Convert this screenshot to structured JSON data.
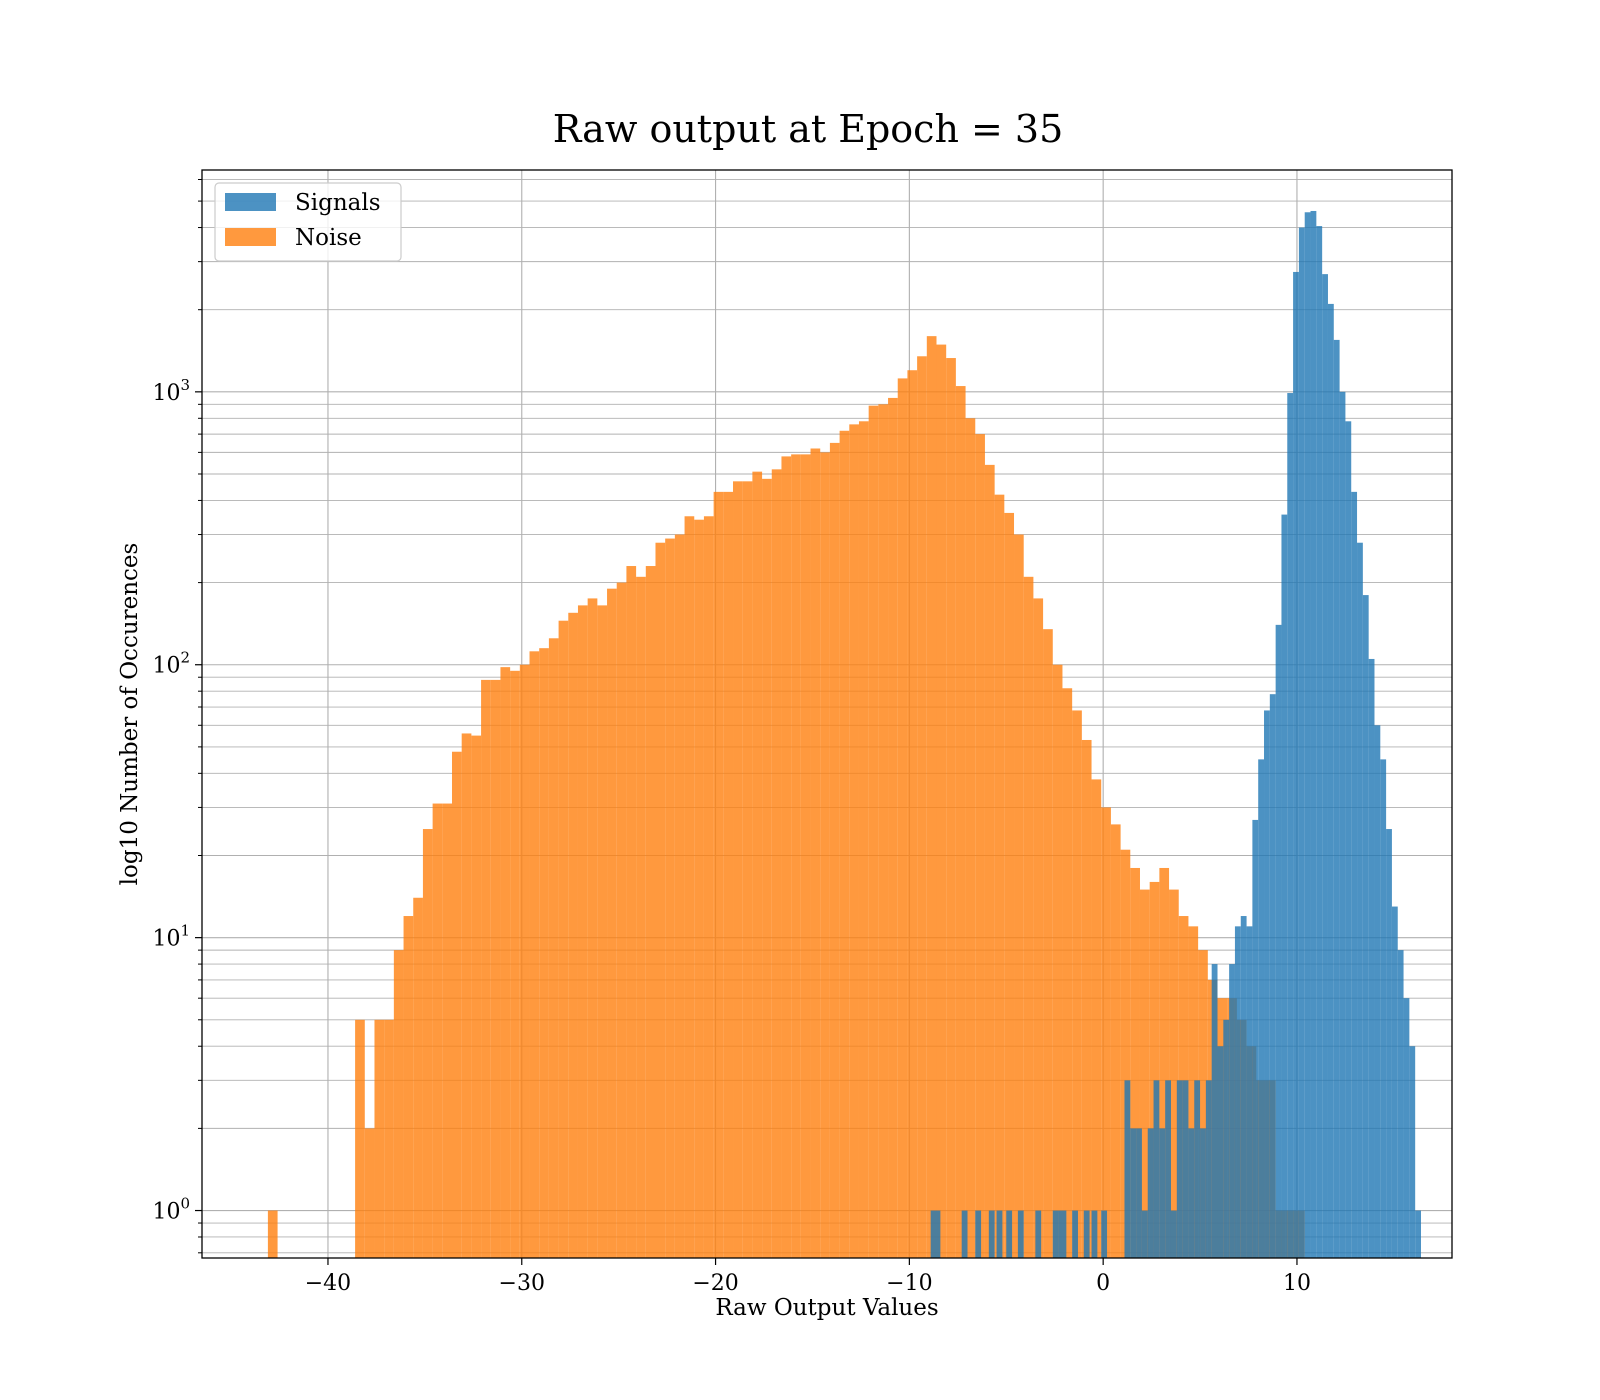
{
  "chart_data": {
    "type": "histogram",
    "title": "Raw output at Epoch = 35",
    "xlabel": "Raw Output Values",
    "ylabel": "log10 Number of Occurences",
    "yscale": "log",
    "xlim": [
      -46.5,
      18
    ],
    "ylim": [
      0.67,
      6500
    ],
    "grid": true,
    "legend_position": "upper left",
    "x_ticks": [
      {
        "value": -40,
        "label": "−40"
      },
      {
        "value": -30,
        "label": "−30"
      },
      {
        "value": -20,
        "label": "−20"
      },
      {
        "value": -10,
        "label": "−10"
      },
      {
        "value": 0,
        "label": "0"
      },
      {
        "value": 10,
        "label": "10"
      }
    ],
    "y_ticks": [
      {
        "value": 1,
        "base": "10",
        "exp": "0"
      },
      {
        "value": 10,
        "base": "10",
        "exp": "1"
      },
      {
        "value": 100,
        "base": "10",
        "exp": "2"
      },
      {
        "value": 1000,
        "base": "10",
        "exp": "3"
      }
    ],
    "series": [
      {
        "name": "Signals",
        "color": "#1f77b4",
        "opacity": 0.8,
        "bins": [
          [
            -8.9,
            -8.4,
            1
          ],
          [
            -7.3,
            -7.0,
            1
          ],
          [
            -6.6,
            -6.3,
            1
          ],
          [
            -5.9,
            -5.6,
            1
          ],
          [
            -5.5,
            -5.2,
            1
          ],
          [
            -5.0,
            -4.7,
            1
          ],
          [
            -4.4,
            -4.1,
            1
          ],
          [
            -3.5,
            -3.2,
            1
          ],
          [
            -2.6,
            -2.3,
            1
          ],
          [
            -2.3,
            -1.9,
            1
          ],
          [
            -1.6,
            -1.3,
            1
          ],
          [
            -1.0,
            -0.7,
            1
          ],
          [
            -0.6,
            -0.3,
            1
          ],
          [
            -0.1,
            0.2,
            1
          ],
          [
            1.1,
            1.4,
            3
          ],
          [
            1.4,
            1.7,
            2
          ],
          [
            1.7,
            2.0,
            2
          ],
          [
            2.0,
            2.3,
            1
          ],
          [
            2.3,
            2.6,
            2
          ],
          [
            2.6,
            2.9,
            3
          ],
          [
            2.9,
            3.2,
            2
          ],
          [
            3.2,
            3.5,
            3
          ],
          [
            3.5,
            3.8,
            1
          ],
          [
            3.8,
            4.1,
            3
          ],
          [
            4.1,
            4.4,
            3
          ],
          [
            4.4,
            4.7,
            2
          ],
          [
            4.7,
            5.0,
            3
          ],
          [
            5.0,
            5.3,
            2
          ],
          [
            5.3,
            5.6,
            3
          ],
          [
            5.6,
            5.9,
            8
          ],
          [
            5.9,
            6.2,
            4
          ],
          [
            6.2,
            6.5,
            5
          ],
          [
            6.5,
            6.8,
            8
          ],
          [
            6.8,
            7.1,
            11
          ],
          [
            7.1,
            7.4,
            12
          ],
          [
            7.4,
            7.7,
            11
          ],
          [
            7.7,
            8.0,
            27
          ],
          [
            8.0,
            8.3,
            45
          ],
          [
            8.3,
            8.6,
            68
          ],
          [
            8.6,
            8.9,
            78
          ],
          [
            8.9,
            9.2,
            140
          ],
          [
            9.2,
            9.5,
            355
          ],
          [
            9.5,
            9.8,
            990
          ],
          [
            9.8,
            10.1,
            2750
          ],
          [
            10.1,
            10.4,
            4000
          ],
          [
            10.4,
            10.7,
            4550
          ],
          [
            10.7,
            11.0,
            4600
          ],
          [
            11.0,
            11.3,
            4050
          ],
          [
            11.3,
            11.6,
            2700
          ],
          [
            11.6,
            11.9,
            2100
          ],
          [
            11.9,
            12.2,
            1550
          ],
          [
            12.2,
            12.5,
            1000
          ],
          [
            12.5,
            12.8,
            780
          ],
          [
            12.8,
            13.1,
            430
          ],
          [
            13.1,
            13.4,
            280
          ],
          [
            13.4,
            13.7,
            180
          ],
          [
            13.7,
            14.0,
            105
          ],
          [
            14.0,
            14.3,
            60
          ],
          [
            14.3,
            14.6,
            45
          ],
          [
            14.6,
            14.9,
            25
          ],
          [
            14.9,
            15.2,
            13
          ],
          [
            15.2,
            15.5,
            9
          ],
          [
            15.5,
            15.8,
            6
          ],
          [
            15.8,
            16.1,
            4
          ],
          [
            16.1,
            16.4,
            1
          ]
        ]
      },
      {
        "name": "Noise",
        "color": "#ff7f0e",
        "opacity": 0.8,
        "bins": [
          [
            -43.1,
            -42.6,
            1
          ],
          [
            -38.6,
            -38.1,
            5
          ],
          [
            -38.1,
            -37.6,
            2
          ],
          [
            -37.6,
            -37.1,
            5
          ],
          [
            -37.1,
            -36.6,
            5
          ],
          [
            -36.6,
            -36.1,
            9
          ],
          [
            -36.1,
            -35.6,
            12
          ],
          [
            -35.6,
            -35.1,
            14
          ],
          [
            -35.1,
            -34.6,
            25
          ],
          [
            -34.6,
            -34.1,
            31
          ],
          [
            -34.1,
            -33.6,
            31
          ],
          [
            -33.6,
            -33.1,
            48
          ],
          [
            -33.1,
            -32.6,
            56
          ],
          [
            -32.6,
            -32.1,
            55
          ],
          [
            -32.1,
            -31.6,
            88
          ],
          [
            -31.6,
            -31.1,
            88
          ],
          [
            -31.1,
            -30.6,
            98
          ],
          [
            -30.6,
            -30.1,
            95
          ],
          [
            -30.1,
            -29.6,
            100
          ],
          [
            -29.6,
            -29.1,
            112
          ],
          [
            -29.1,
            -28.6,
            115
          ],
          [
            -28.6,
            -28.1,
            125
          ],
          [
            -28.1,
            -27.6,
            145
          ],
          [
            -27.6,
            -27.1,
            155
          ],
          [
            -27.1,
            -26.6,
            165
          ],
          [
            -26.6,
            -26.1,
            175
          ],
          [
            -26.1,
            -25.6,
            165
          ],
          [
            -25.6,
            -25.1,
            190
          ],
          [
            -25.1,
            -24.6,
            200
          ],
          [
            -24.6,
            -24.1,
            230
          ],
          [
            -24.1,
            -23.6,
            210
          ],
          [
            -23.6,
            -23.1,
            230
          ],
          [
            -23.1,
            -22.6,
            280
          ],
          [
            -22.6,
            -22.1,
            290
          ],
          [
            -22.1,
            -21.6,
            300
          ],
          [
            -21.6,
            -21.1,
            350
          ],
          [
            -21.1,
            -20.6,
            340
          ],
          [
            -20.6,
            -20.1,
            350
          ],
          [
            -20.1,
            -19.6,
            430
          ],
          [
            -19.6,
            -19.1,
            430
          ],
          [
            -19.1,
            -18.6,
            470
          ],
          [
            -18.6,
            -18.1,
            470
          ],
          [
            -18.1,
            -17.6,
            510
          ],
          [
            -17.6,
            -17.1,
            480
          ],
          [
            -17.1,
            -16.6,
            520
          ],
          [
            -16.6,
            -16.1,
            580
          ],
          [
            -16.1,
            -15.6,
            590
          ],
          [
            -15.6,
            -15.1,
            590
          ],
          [
            -15.1,
            -14.6,
            620
          ],
          [
            -14.6,
            -14.1,
            600
          ],
          [
            -14.1,
            -13.6,
            650
          ],
          [
            -13.6,
            -13.1,
            720
          ],
          [
            -13.1,
            -12.6,
            760
          ],
          [
            -12.6,
            -12.1,
            780
          ],
          [
            -12.1,
            -11.6,
            890
          ],
          [
            -11.6,
            -11.1,
            900
          ],
          [
            -11.1,
            -10.6,
            950
          ],
          [
            -10.6,
            -10.1,
            1120
          ],
          [
            -10.1,
            -9.6,
            1200
          ],
          [
            -9.6,
            -9.1,
            1350
          ],
          [
            -9.1,
            -8.6,
            1600
          ],
          [
            -8.6,
            -8.1,
            1490
          ],
          [
            -8.1,
            -7.6,
            1330
          ],
          [
            -7.6,
            -7.1,
            1050
          ],
          [
            -7.1,
            -6.6,
            800
          ],
          [
            -6.6,
            -6.1,
            700
          ],
          [
            -6.1,
            -5.6,
            540
          ],
          [
            -5.6,
            -5.1,
            420
          ],
          [
            -5.1,
            -4.6,
            360
          ],
          [
            -4.6,
            -4.1,
            300
          ],
          [
            -4.1,
            -3.6,
            210
          ],
          [
            -3.6,
            -3.1,
            175
          ],
          [
            -3.1,
            -2.6,
            135
          ],
          [
            -2.6,
            -2.1,
            100
          ],
          [
            -2.1,
            -1.6,
            82
          ],
          [
            -1.6,
            -1.1,
            68
          ],
          [
            -1.1,
            -0.6,
            53
          ],
          [
            -0.6,
            -0.1,
            38
          ],
          [
            -0.1,
            0.4,
            30
          ],
          [
            0.4,
            0.9,
            26
          ],
          [
            0.9,
            1.4,
            21
          ],
          [
            1.4,
            1.9,
            18
          ],
          [
            1.9,
            2.4,
            15
          ],
          [
            2.4,
            2.9,
            16
          ],
          [
            2.9,
            3.4,
            18
          ],
          [
            3.4,
            3.9,
            15
          ],
          [
            3.9,
            4.4,
            12
          ],
          [
            4.4,
            4.9,
            11
          ],
          [
            4.9,
            5.4,
            9
          ],
          [
            5.4,
            5.9,
            7
          ],
          [
            5.9,
            6.4,
            6
          ],
          [
            6.4,
            6.9,
            6
          ],
          [
            6.9,
            7.4,
            5
          ],
          [
            7.4,
            7.9,
            4
          ],
          [
            7.9,
            8.4,
            3
          ],
          [
            8.4,
            8.9,
            3
          ],
          [
            8.9,
            9.4,
            1
          ],
          [
            9.4,
            9.9,
            1
          ],
          [
            9.9,
            10.4,
            1
          ]
        ]
      }
    ]
  }
}
